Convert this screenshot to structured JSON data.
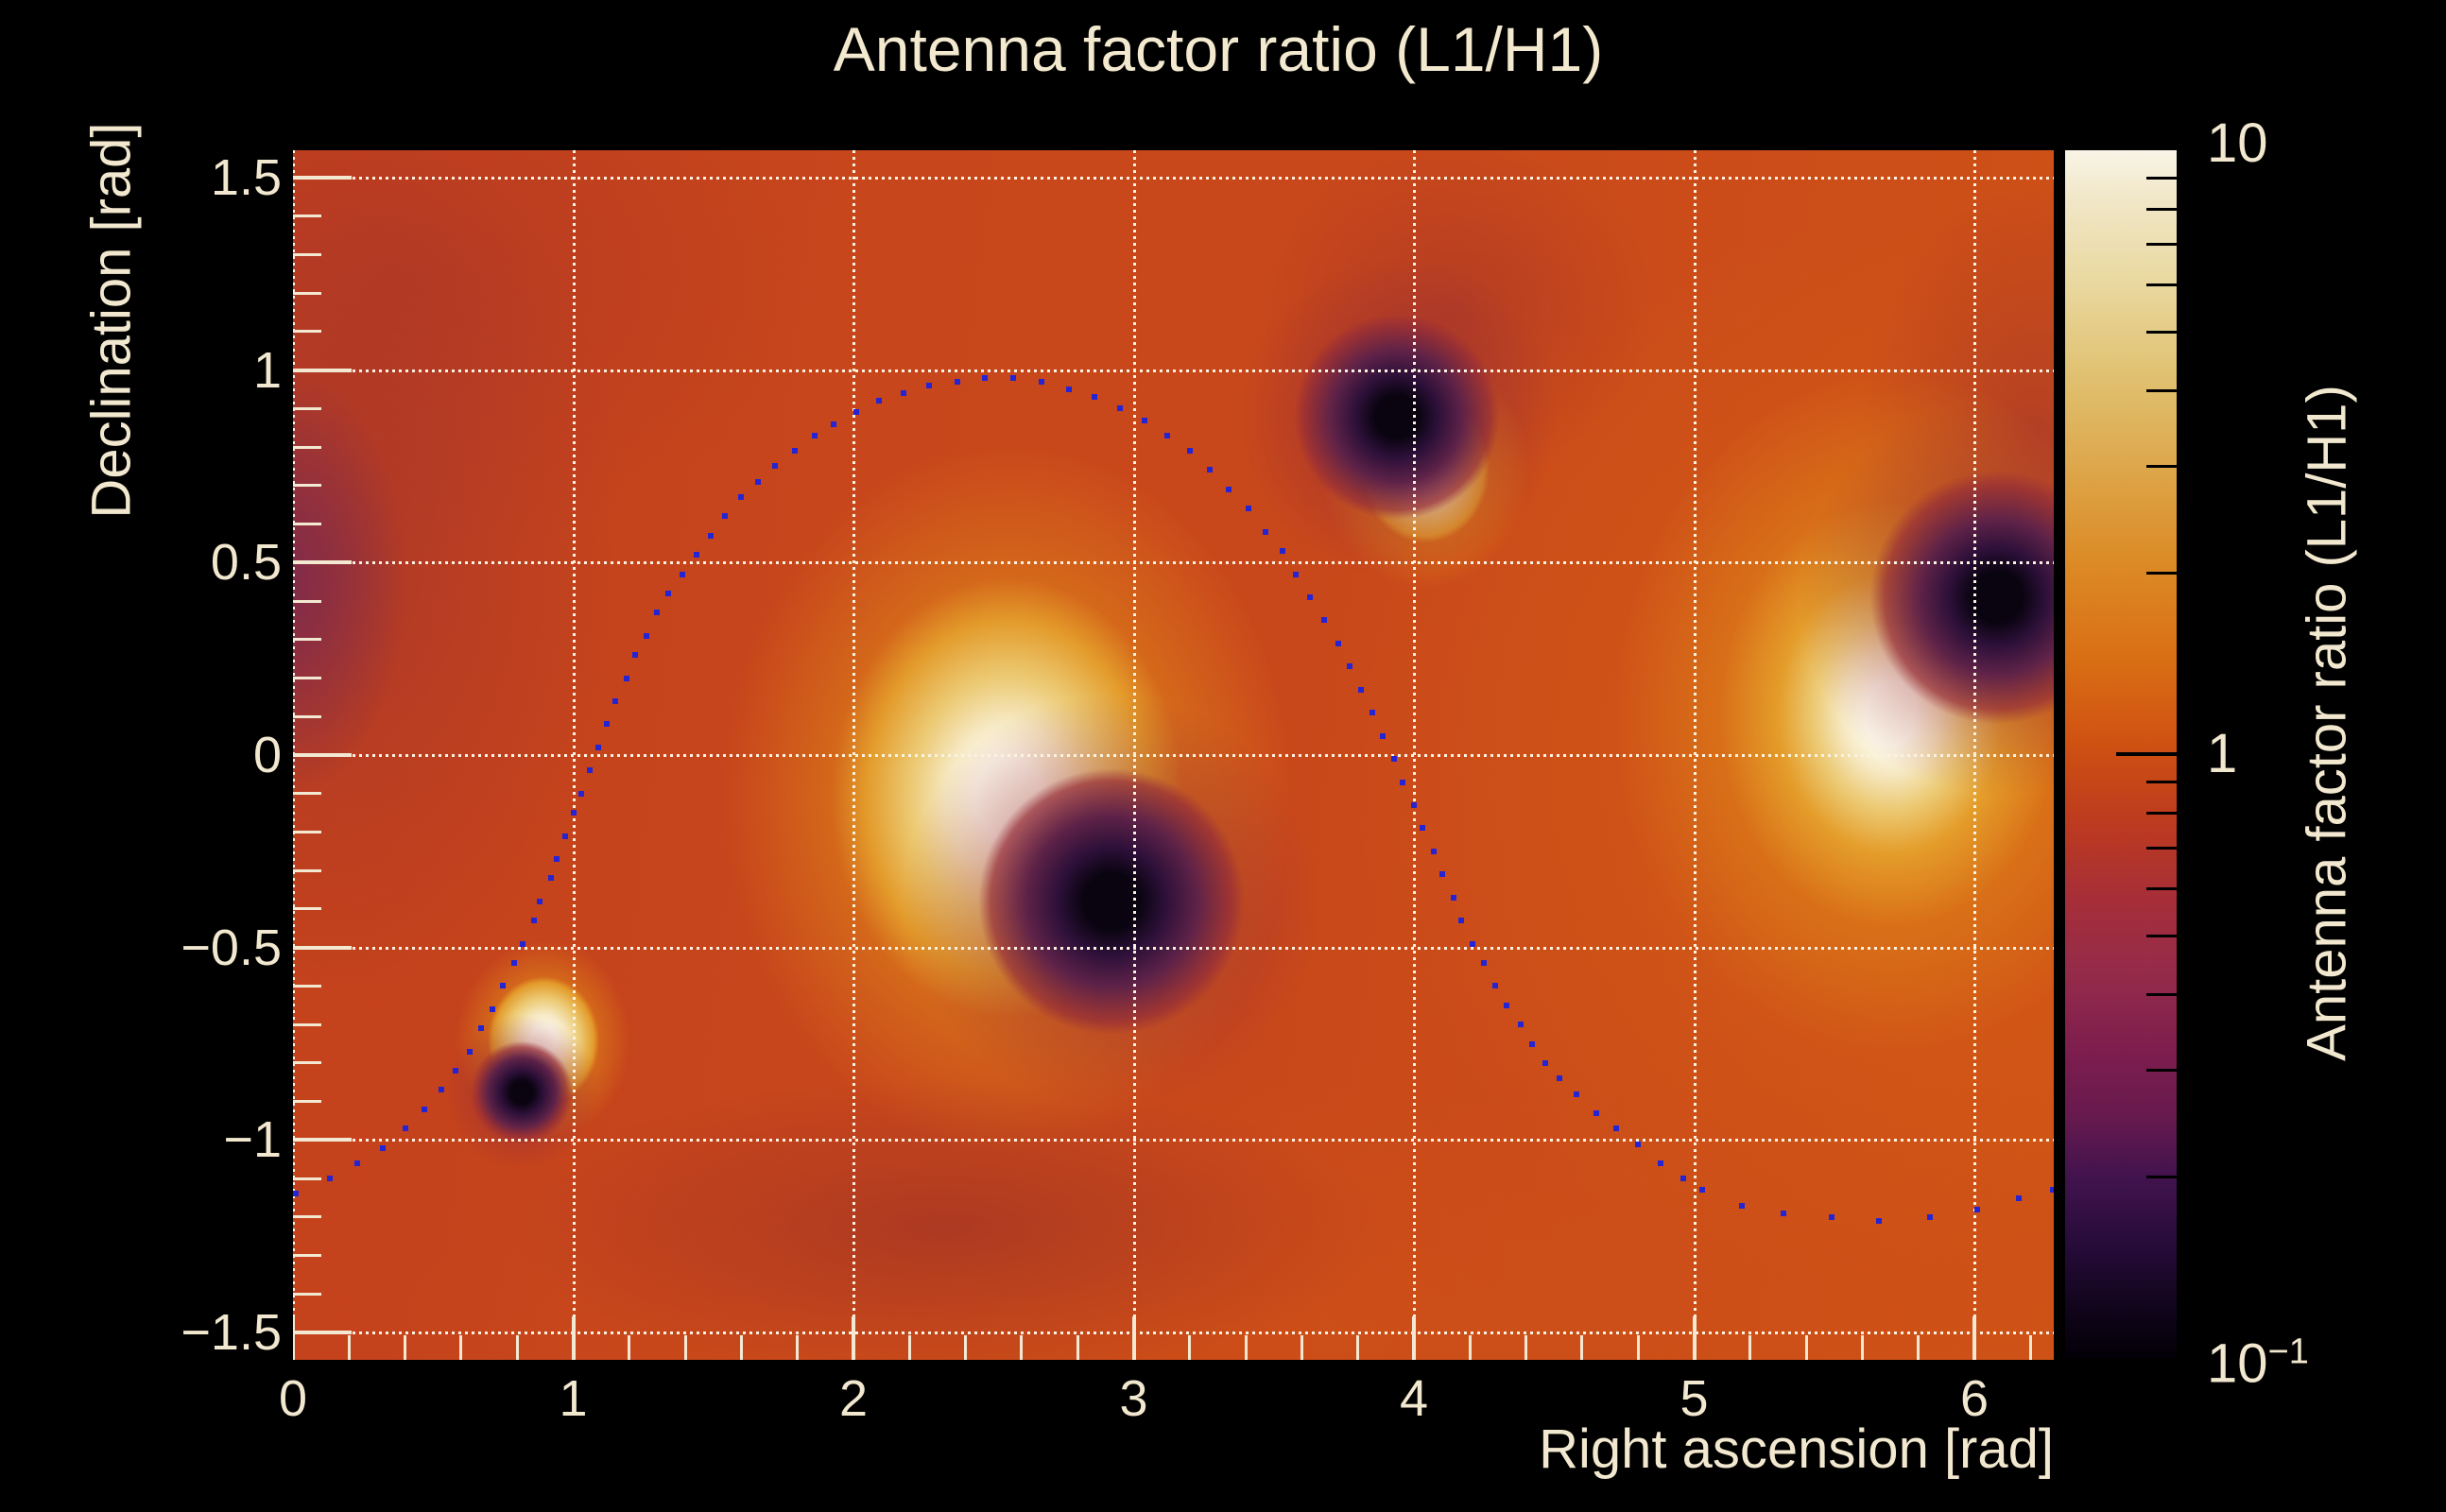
{
  "title": {
    "text": "Antenna factor ratio (L1/H1)"
  },
  "axes": {
    "x": {
      "label": "Right ascension [rad]",
      "tick_values": [
        0,
        1,
        2,
        3,
        4,
        5,
        6
      ],
      "tick_labels": [
        "0",
        "1",
        "2",
        "3",
        "4",
        "5",
        "6"
      ],
      "minor_step": 0.2,
      "range": [
        0,
        6.283185
      ]
    },
    "y": {
      "label": "Declination [rad]",
      "tick_values": [
        1.5,
        1,
        0.5,
        0,
        -0.5,
        -1,
        -1.5
      ],
      "tick_labels": [
        "1.5",
        "1",
        "0.5",
        "0",
        "−0.5",
        "−1",
        "−1.5"
      ],
      "minor_step": 0.1,
      "range": [
        -1.570796,
        1.570796
      ]
    },
    "grid": true
  },
  "colorbar": {
    "label": "Antenna factor ratio (L1/H1)",
    "scale": "log",
    "range": [
      0.1,
      10
    ],
    "major_ticks": [
      {
        "value": 10,
        "base": "10",
        "exp": ""
      },
      {
        "value": 1,
        "base": "1",
        "exp": ""
      },
      {
        "value": 0.1,
        "base": "10",
        "exp": "−1"
      }
    ],
    "minor_ticks": [
      9,
      8,
      7,
      6,
      5,
      4,
      3,
      2,
      0.9,
      0.8,
      0.7,
      0.6,
      0.5,
      0.4,
      0.3,
      0.2
    ],
    "gradient_stops": [
      [
        "0%",
        "#f9f4e6"
      ],
      [
        "4%",
        "#f1e7c8"
      ],
      [
        "11%",
        "#e9d89f"
      ],
      [
        "19%",
        "#e0c06f"
      ],
      [
        "27%",
        "#dda447"
      ],
      [
        "34%",
        "#dc8b26"
      ],
      [
        "42%",
        "#d96f15"
      ],
      [
        "49%",
        "#d05212"
      ],
      [
        "53%",
        "#c44319"
      ],
      [
        "56%",
        "#bc3a20"
      ],
      [
        "62%",
        "#a62e38"
      ],
      [
        "68%",
        "#952b4a"
      ],
      [
        "75%",
        "#7c1d4e"
      ],
      [
        "80%",
        "#671a4e"
      ],
      [
        "85%",
        "#42134e"
      ],
      [
        "91%",
        "#250b38"
      ],
      [
        "96%",
        "#10041a"
      ],
      [
        "100%",
        "#030008"
      ]
    ]
  },
  "colors": {
    "background": "#000000",
    "text": "#f2e8cf",
    "grid": "#fbf3e2",
    "tick": "#f3e9d2",
    "track_marker": "#2424d4",
    "map_base": "#c9481b"
  },
  "chart_data": {
    "type": "heatmap",
    "title": "Antenna factor ratio (L1/H1)",
    "xlabel": "Right ascension [rad]",
    "ylabel": "Declination [rad]",
    "zlabel": "Antenna factor ratio (L1/H1)",
    "xlim": [
      0,
      6.283185
    ],
    "ylim": [
      -1.570796,
      1.570796
    ],
    "zlim": [
      0.1,
      10
    ],
    "zscale": "log",
    "grid": "dotted",
    "hotspots": [
      {
        "kind": "bright",
        "ra": 2.55,
        "dec": -0.11,
        "core": 34,
        "halo": 300,
        "stretch": 1.25
      },
      {
        "kind": "bright",
        "ra": 5.7,
        "dec": 0.108,
        "core": 27,
        "halo": 290,
        "stretch": 1.25
      },
      {
        "kind": "bright",
        "ra": 4.04,
        "dec": 0.744,
        "core": 14,
        "halo": 110,
        "stretch": 1.15
      },
      {
        "kind": "bright",
        "ra": 0.895,
        "dec": -0.741,
        "core": 13,
        "halo": 92,
        "stretch": 1.15
      },
      {
        "kind": "dark",
        "ra": 2.92,
        "dec": -0.38,
        "core": 30,
        "halo": 220,
        "stretch": 1.0
      },
      {
        "kind": "dark",
        "ra": 6.08,
        "dec": 0.41,
        "core": 27,
        "halo": 210,
        "stretch": 1.0
      },
      {
        "kind": "dark",
        "ra": 3.94,
        "dec": 0.879,
        "core": 23,
        "halo": 170,
        "stretch": 1.0
      },
      {
        "kind": "dark",
        "ra": 0.815,
        "dec": -0.876,
        "core": 12,
        "halo": 82,
        "stretch": 1.0
      }
    ],
    "track_points": [
      [
        0.01,
        -1.14
      ],
      [
        0.13,
        -1.1
      ],
      [
        0.23,
        -1.06
      ],
      [
        0.32,
        -1.02
      ],
      [
        0.4,
        -0.97
      ],
      [
        0.47,
        -0.92
      ],
      [
        0.53,
        -0.87
      ],
      [
        0.58,
        -0.82
      ],
      [
        0.63,
        -0.77
      ],
      [
        0.67,
        -0.71
      ],
      [
        0.71,
        -0.66
      ],
      [
        0.75,
        -0.6
      ],
      [
        0.79,
        -0.54
      ],
      [
        0.82,
        -0.49
      ],
      [
        0.86,
        -0.43
      ],
      [
        0.88,
        -0.38
      ],
      [
        0.92,
        -0.32
      ],
      [
        0.94,
        -0.27
      ],
      [
        0.97,
        -0.21
      ],
      [
        1.0,
        -0.15
      ],
      [
        1.03,
        -0.1
      ],
      [
        1.06,
        -0.04
      ],
      [
        1.09,
        0.02
      ],
      [
        1.12,
        0.08
      ],
      [
        1.15,
        0.14
      ],
      [
        1.19,
        0.2
      ],
      [
        1.22,
        0.26
      ],
      [
        1.26,
        0.31
      ],
      [
        1.3,
        0.37
      ],
      [
        1.34,
        0.42
      ],
      [
        1.39,
        0.47
      ],
      [
        1.44,
        0.52
      ],
      [
        1.49,
        0.57
      ],
      [
        1.54,
        0.62
      ],
      [
        1.6,
        0.67
      ],
      [
        1.66,
        0.71
      ],
      [
        1.72,
        0.75
      ],
      [
        1.79,
        0.79
      ],
      [
        1.86,
        0.83
      ],
      [
        1.93,
        0.86
      ],
      [
        2.01,
        0.89
      ],
      [
        2.09,
        0.92
      ],
      [
        2.18,
        0.94
      ],
      [
        2.27,
        0.96
      ],
      [
        2.37,
        0.97
      ],
      [
        2.47,
        0.98
      ],
      [
        2.57,
        0.98
      ],
      [
        2.67,
        0.97
      ],
      [
        2.77,
        0.95
      ],
      [
        2.86,
        0.93
      ],
      [
        2.95,
        0.9
      ],
      [
        3.04,
        0.87
      ],
      [
        3.12,
        0.83
      ],
      [
        3.2,
        0.79
      ],
      [
        3.27,
        0.74
      ],
      [
        3.34,
        0.69
      ],
      [
        3.41,
        0.64
      ],
      [
        3.47,
        0.58
      ],
      [
        3.53,
        0.53
      ],
      [
        3.58,
        0.47
      ],
      [
        3.63,
        0.41
      ],
      [
        3.68,
        0.35
      ],
      [
        3.73,
        0.29
      ],
      [
        3.77,
        0.23
      ],
      [
        3.81,
        0.17
      ],
      [
        3.85,
        0.11
      ],
      [
        3.89,
        0.05
      ],
      [
        3.93,
        -0.01
      ],
      [
        3.96,
        -0.07
      ],
      [
        4.0,
        -0.13
      ],
      [
        4.03,
        -0.19
      ],
      [
        4.07,
        -0.25
      ],
      [
        4.1,
        -0.31
      ],
      [
        4.14,
        -0.37
      ],
      [
        4.17,
        -0.43
      ],
      [
        4.21,
        -0.49
      ],
      [
        4.25,
        -0.54
      ],
      [
        4.29,
        -0.6
      ],
      [
        4.33,
        -0.65
      ],
      [
        4.38,
        -0.7
      ],
      [
        4.42,
        -0.75
      ],
      [
        4.47,
        -0.8
      ],
      [
        4.52,
        -0.84
      ],
      [
        4.58,
        -0.88
      ],
      [
        4.65,
        -0.93
      ],
      [
        4.72,
        -0.97
      ],
      [
        4.8,
        -1.01
      ],
      [
        4.88,
        -1.06
      ],
      [
        4.96,
        -1.1
      ],
      [
        5.03,
        -1.13
      ],
      [
        5.17,
        -1.17
      ],
      [
        5.32,
        -1.19
      ],
      [
        5.49,
        -1.2
      ],
      [
        5.66,
        -1.21
      ],
      [
        5.84,
        -1.2
      ],
      [
        6.01,
        -1.18
      ],
      [
        6.16,
        -1.15
      ],
      [
        6.28,
        -1.13
      ]
    ]
  }
}
